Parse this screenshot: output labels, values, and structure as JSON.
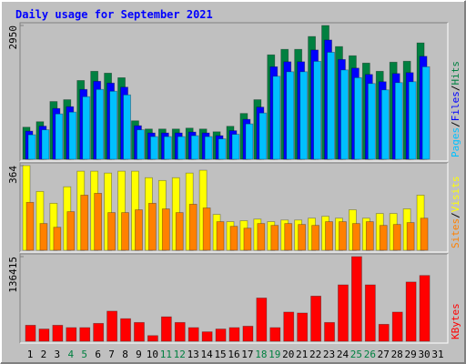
{
  "chart_data": [
    {
      "type": "bar",
      "title": "Daily usage for September 2021",
      "legend_separator": "/",
      "series": [
        {
          "name": "Hits",
          "color": "#008040",
          "values": [
            707,
            828,
            1273,
            1313,
            1737,
            1940,
            1899,
            1798,
            848,
            667,
            667,
            667,
            687,
            667,
            606,
            727,
            1010,
            1313,
            2303,
            2424,
            2424,
            2707,
            2950,
            2485,
            2283,
            2121,
            1940,
            2141,
            2162,
            2566,
            null
          ]
        },
        {
          "name": "Files",
          "color": "#0000ff",
          "values": [
            620,
            730,
            1120,
            1160,
            1540,
            1720,
            1680,
            1590,
            740,
            580,
            580,
            580,
            600,
            580,
            520,
            630,
            880,
            1150,
            2040,
            2150,
            2150,
            2410,
            2630,
            2200,
            2010,
            1870,
            1710,
            1890,
            1910,
            2270,
            null
          ]
        },
        {
          "name": "Pages",
          "color": "#00c0ff",
          "values": [
            540,
            650,
            1000,
            1040,
            1380,
            1540,
            1500,
            1420,
            650,
            500,
            500,
            500,
            520,
            500,
            450,
            550,
            780,
            1020,
            1830,
            1930,
            1930,
            2160,
            2360,
            1970,
            1800,
            1670,
            1530,
            1690,
            1710,
            2040,
            null
          ]
        }
      ],
      "ylim": [
        0,
        2950
      ],
      "yticks": [
        2950
      ]
    },
    {
      "type": "bar",
      "legend_separator": "/",
      "series": [
        {
          "name": "Visits",
          "color": "#ffff00",
          "values": [
            364,
            253,
            202,
            273,
            340,
            340,
            332,
            340,
            340,
            312,
            300,
            312,
            332,
            344,
            154,
            123,
            127,
            134,
            123,
            130,
            130,
            138,
            146,
            138,
            174,
            138,
            158,
            158,
            178,
            237,
            null
          ]
        },
        {
          "name": "Sites",
          "color": "#ff8000",
          "values": [
            206,
            115,
            99,
            166,
            237,
            245,
            162,
            162,
            174,
            202,
            178,
            162,
            198,
            182,
            123,
            103,
            95,
            115,
            107,
            115,
            111,
            107,
            123,
            123,
            115,
            123,
            107,
            111,
            119,
            138,
            null
          ]
        }
      ],
      "ylim": [
        0,
        364
      ],
      "yticks": [
        364
      ]
    },
    {
      "type": "bar",
      "categories": [
        "1",
        "2",
        "3",
        "4",
        "5",
        "6",
        "7",
        "8",
        "9",
        "10",
        "11",
        "12",
        "13",
        "14",
        "15",
        "16",
        "17",
        "18",
        "19",
        "20",
        "21",
        "22",
        "23",
        "24",
        "25",
        "26",
        "27",
        "28",
        "29",
        "30",
        "31"
      ],
      "label_colors": [
        "#000000",
        "#000000",
        "#000000",
        "#008040",
        "#008040",
        "#000000",
        "#000000",
        "#000000",
        "#000000",
        "#000000",
        "#008040",
        "#008040",
        "#000000",
        "#000000",
        "#000000",
        "#000000",
        "#000000",
        "#008040",
        "#008040",
        "#000000",
        "#000000",
        "#000000",
        "#000000",
        "#000000",
        "#008040",
        "#008040",
        "#000000",
        "#000000",
        "#000000",
        "#000000",
        "#000000"
      ],
      "series": [
        {
          "name": "KBytes",
          "color": "#ff0000",
          "values": [
            25766,
            19700,
            25766,
            22000,
            22000,
            28800,
            48500,
            36400,
            30300,
            9100,
            39400,
            30300,
            22000,
            15200,
            19700,
            22000,
            24250,
            69700,
            22000,
            47000,
            45500,
            72750,
            30300,
            90900,
            136415,
            90900,
            27300,
            47000,
            95500,
            106000,
            null
          ]
        }
      ],
      "ylim": [
        0,
        136415
      ],
      "yticks": [
        136415
      ]
    }
  ]
}
